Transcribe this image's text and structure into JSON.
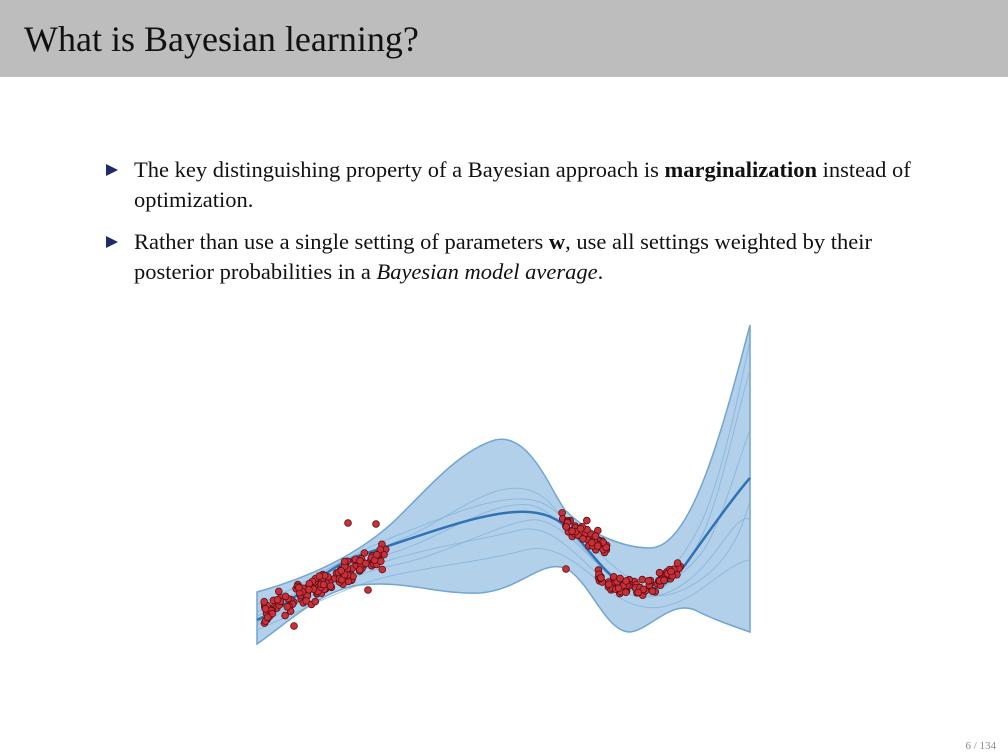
{
  "slide": {
    "title": "What is Bayesian learning?",
    "page_current": "6",
    "page_sep": " / ",
    "page_total": "134"
  },
  "bullets": [
    {
      "parts": [
        "The key distinguishing property of a Bayesian approach is ",
        "marginalization",
        " instead of optimization."
      ]
    },
    {
      "parts": [
        "Rather than use a single setting of parameters ",
        "w",
        ", use all settings weighted by their posterior probabilities in a ",
        "Bayesian model average",
        "."
      ]
    }
  ],
  "figure": {
    "band_color": "#b3d0ea",
    "band_edge_color": "#6fa6d2",
    "mean_color": "#2f73b5",
    "sample_color": "#7fb1da",
    "point_fill": "#c8313a",
    "point_stroke": "#5a0d12"
  }
}
